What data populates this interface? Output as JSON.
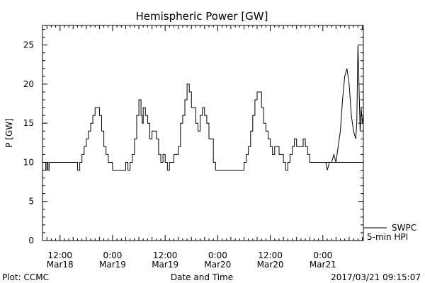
{
  "chart_data": {
    "type": "line",
    "title": "Hemispheric Power [GW]",
    "ylabel": "P [GW]",
    "xlabel": "Date and Time",
    "ylim": [
      0,
      27.5
    ],
    "xlim": [
      "2017-03-18T08:00",
      "2017-03-21T09:15"
    ],
    "grid": false,
    "y_ticks": [
      0,
      5,
      10,
      15,
      20,
      25
    ],
    "x_ticks": [
      {
        "t": "2017-03-18T12:00",
        "line1": "12:00",
        "line2": "Mar18"
      },
      {
        "t": "2017-03-19T00:00",
        "line1": "0:00",
        "line2": "Mar19"
      },
      {
        "t": "2017-03-19T12:00",
        "line1": "12:00",
        "line2": "Mar19"
      },
      {
        "t": "2017-03-20T00:00",
        "line1": "0:00",
        "line2": "Mar20"
      },
      {
        "t": "2017-03-20T12:00",
        "line1": "12:00",
        "line2": "Mar20"
      },
      {
        "t": "2017-03-21T00:00",
        "line1": "0:00",
        "line2": "Mar21"
      }
    ],
    "legend": {
      "placement": "bottom-right",
      "entries": [
        "SWPC",
        "5-min HPI"
      ]
    },
    "series": [
      {
        "name": "SWPC",
        "step": true,
        "x": [
          "2017-03-18T08:00",
          "2017-03-18T08:45",
          "2017-03-18T09:00",
          "2017-03-18T09:15",
          "2017-03-18T09:30",
          "2017-03-18T10:00",
          "2017-03-18T16:00",
          "2017-03-18T16:30",
          "2017-03-18T17:00",
          "2017-03-18T17:30",
          "2017-03-18T18:00",
          "2017-03-18T18:30",
          "2017-03-18T19:00",
          "2017-03-18T19:30",
          "2017-03-18T20:00",
          "2017-03-18T21:00",
          "2017-03-18T21:30",
          "2017-03-18T22:00",
          "2017-03-18T22:30",
          "2017-03-18T23:00",
          "2017-03-18T23:30",
          "2017-03-19T00:00",
          "2017-03-19T02:00",
          "2017-03-19T03:00",
          "2017-03-19T03:30",
          "2017-03-19T04:00",
          "2017-03-19T04:30",
          "2017-03-19T05:00",
          "2017-03-19T05:30",
          "2017-03-19T06:00",
          "2017-03-19T06:30",
          "2017-03-19T06:45",
          "2017-03-19T07:00",
          "2017-03-19T07:30",
          "2017-03-19T08:00",
          "2017-03-19T08:30",
          "2017-03-19T09:00",
          "2017-03-19T10:00",
          "2017-03-19T10:30",
          "2017-03-19T11:00",
          "2017-03-19T11:30",
          "2017-03-19T12:00",
          "2017-03-19T12:30",
          "2017-03-19T13:00",
          "2017-03-19T14:00",
          "2017-03-19T15:00",
          "2017-03-19T15:30",
          "2017-03-19T16:00",
          "2017-03-19T16:30",
          "2017-03-19T17:00",
          "2017-03-19T17:30",
          "2017-03-19T18:00",
          "2017-03-19T19:00",
          "2017-03-19T19:30",
          "2017-03-19T20:00",
          "2017-03-19T20:30",
          "2017-03-19T21:00",
          "2017-03-19T21:30",
          "2017-03-19T22:00",
          "2017-03-19T23:00",
          "2017-03-19T23:30",
          "2017-03-20T00:00",
          "2017-03-20T00:30",
          "2017-03-20T01:00",
          "2017-03-20T01:30",
          "2017-03-20T02:00",
          "2017-03-20T06:00",
          "2017-03-20T06:30",
          "2017-03-20T07:00",
          "2017-03-20T07:30",
          "2017-03-20T08:00",
          "2017-03-20T08:30",
          "2017-03-20T09:00",
          "2017-03-20T10:00",
          "2017-03-20T10:30",
          "2017-03-20T11:00",
          "2017-03-20T11:30",
          "2017-03-20T12:00",
          "2017-03-20T12:30",
          "2017-03-20T13:00",
          "2017-03-20T14:00",
          "2017-03-20T15:00",
          "2017-03-20T15:30",
          "2017-03-20T16:00",
          "2017-03-20T16:30",
          "2017-03-20T17:00",
          "2017-03-20T17:30",
          "2017-03-20T18:00",
          "2017-03-20T19:00",
          "2017-03-20T19:30",
          "2017-03-20T20:00",
          "2017-03-20T20:30",
          "2017-03-20T21:00",
          "2017-03-21T01:00",
          "2017-03-21T09:15"
        ],
        "y": [
          10,
          9,
          10,
          9,
          10,
          10,
          9,
          10,
          11,
          12,
          13,
          14,
          15,
          16,
          17,
          16,
          14,
          12,
          11,
          10,
          10,
          9,
          9,
          10,
          9,
          10,
          11,
          13,
          16,
          18,
          16,
          15,
          17,
          16,
          15,
          13,
          14,
          13,
          11,
          10,
          11,
          10,
          9,
          10,
          11,
          12,
          15,
          16,
          18,
          20,
          19,
          17,
          15,
          14,
          16,
          17,
          16,
          15,
          13,
          10,
          9,
          9,
          9,
          9,
          9,
          9,
          10,
          11,
          12,
          14,
          16,
          18,
          19,
          17,
          15,
          14,
          13,
          12,
          11,
          12,
          11,
          10,
          9,
          10,
          11,
          12,
          13,
          12,
          12,
          13,
          12,
          11,
          10,
          10,
          10
        ]
      },
      {
        "name": "5-min HPI",
        "step": false,
        "x": [
          "2017-03-21T00:40",
          "2017-03-21T01:00",
          "2017-03-21T01:30",
          "2017-03-21T02:00",
          "2017-03-21T02:30",
          "2017-03-21T03:00",
          "2017-03-21T03:30",
          "2017-03-21T04:00",
          "2017-03-21T04:30",
          "2017-03-21T05:00",
          "2017-03-21T05:30",
          "2017-03-21T06:00",
          "2017-03-21T06:30",
          "2017-03-21T07:00",
          "2017-03-21T07:30",
          "2017-03-21T07:45",
          "2017-03-21T08:00",
          "2017-03-21T08:15",
          "2017-03-21T08:30",
          "2017-03-21T08:45",
          "2017-03-21T09:00",
          "2017-03-21T09:15"
        ],
        "y": [
          10,
          9,
          10,
          10,
          11,
          10,
          12,
          14,
          18,
          21,
          22,
          20,
          16,
          14,
          13,
          15,
          25,
          20,
          14,
          17,
          15,
          16
        ]
      }
    ]
  },
  "footer": {
    "credit": "Plot: CCMC",
    "timestamp": "2017/03/21 09:15:07"
  }
}
